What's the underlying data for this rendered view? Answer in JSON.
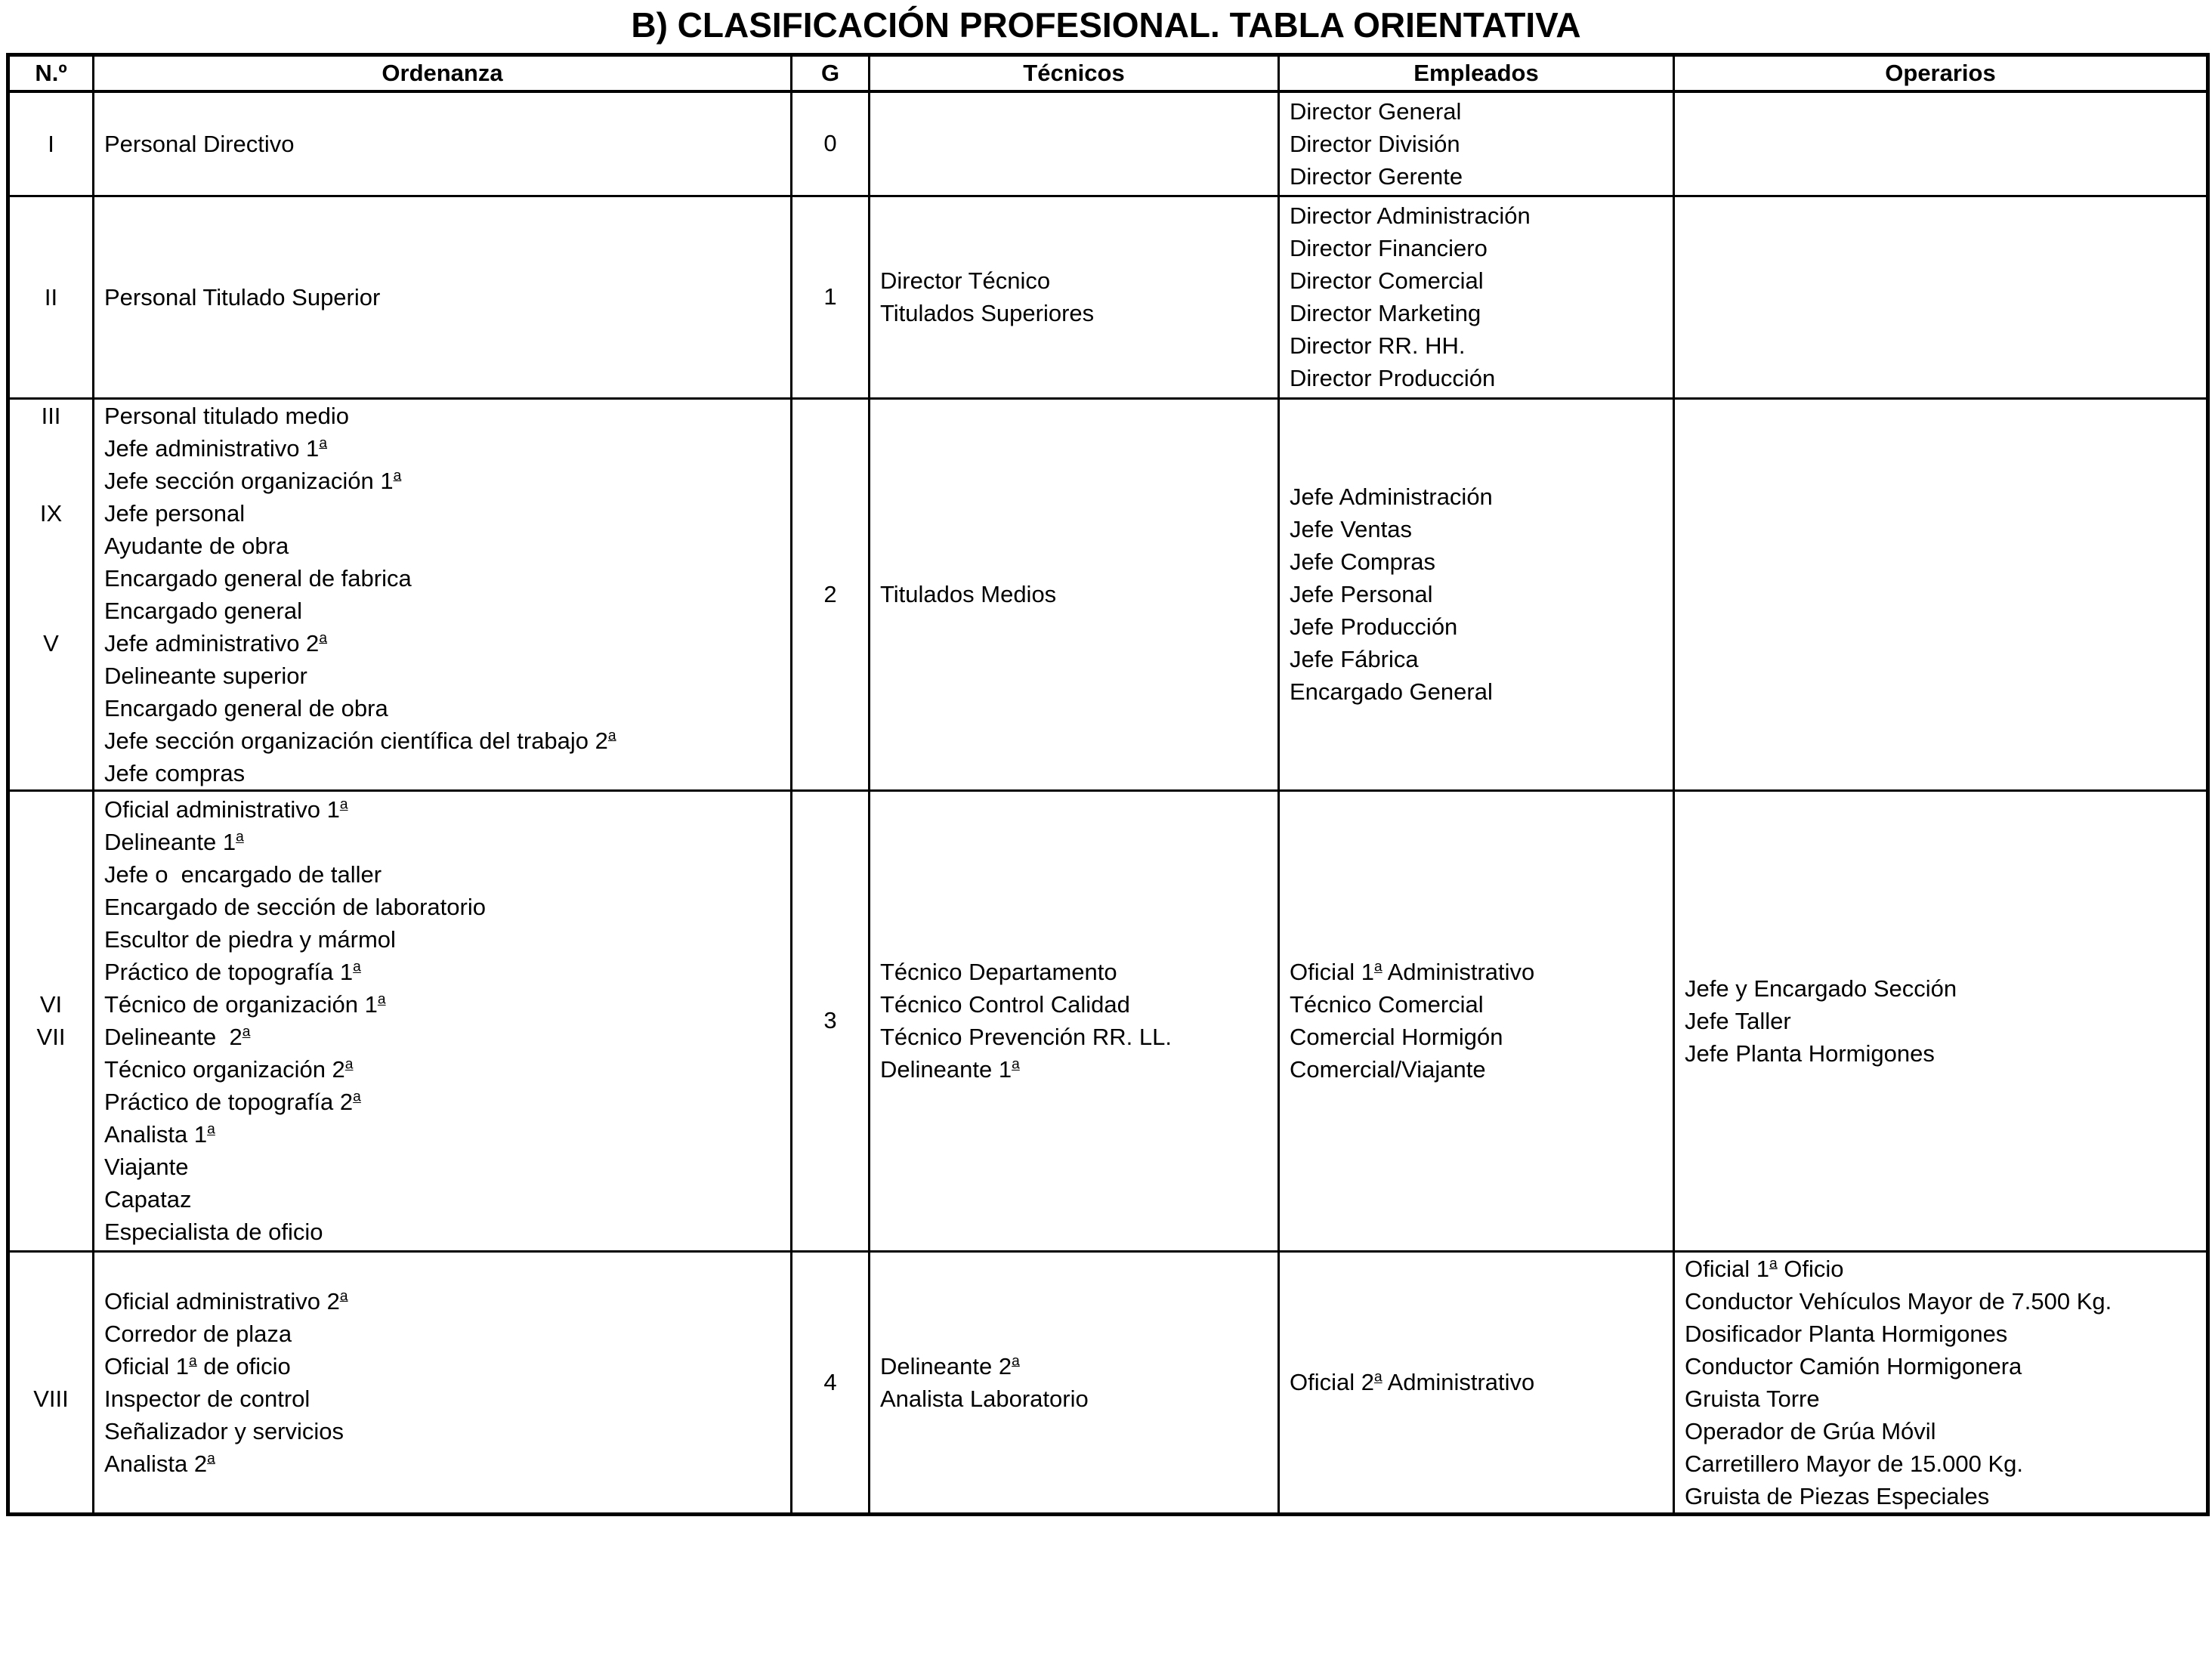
{
  "title": "B) CLASIFICACIÓN PROFESIONAL. TABLA ORIENTATIVA",
  "table": {
    "headers": [
      "N.º",
      "Ordenanza",
      "G",
      "Técnicos",
      "Empleados",
      "Operarios"
    ],
    "rows": [
      {
        "numero": [
          "I"
        ],
        "ordenanza": [
          "Personal Directivo"
        ],
        "g": "0",
        "tecnicos": [],
        "empleados": [
          "Director General",
          "Director División",
          "Director Gerente"
        ],
        "operarios": []
      },
      {
        "numero": [
          "II"
        ],
        "ordenanza": [
          "Personal Titulado Superior"
        ],
        "g": "1",
        "tecnicos": [
          "Director Técnico",
          "Titulados Superiores"
        ],
        "empleados": [
          "Director Administración",
          "Director Financiero",
          "Director Comercial",
          "Director Marketing",
          "Director RR. HH.",
          "Director Producción"
        ],
        "operarios": []
      },
      {
        "numero": [
          "III",
          "",
          "",
          "IX",
          "",
          "",
          "",
          "V",
          "",
          "",
          "",
          ""
        ],
        "ordenanza": [
          "Personal titulado medio",
          "Jefe administrativo 1ª",
          "Jefe sección organización 1ª",
          "Jefe personal",
          "Ayudante de obra",
          "Encargado general de fabrica",
          "Encargado general",
          "Jefe administrativo 2ª",
          "Delineante superior",
          "Encargado general de obra",
          "Jefe sección organización científica del trabajo 2ª",
          "Jefe compras"
        ],
        "g": "2",
        "tecnicos": [
          "Titulados Medios"
        ],
        "empleados": [
          "Jefe Administración",
          "Jefe Ventas",
          "Jefe Compras",
          "Jefe Personal",
          "Jefe Producción",
          "Jefe Fábrica",
          "Encargado General"
        ],
        "operarios": []
      },
      {
        "numero": [
          "",
          "",
          "",
          "",
          "",
          "",
          "VI",
          "VII",
          "",
          "",
          "",
          "",
          "",
          ""
        ],
        "ordenanza": [
          "Oficial administrativo 1ª",
          "Delineante 1ª",
          "Jefe o  encargado de taller",
          "Encargado de sección de laboratorio",
          "Escultor de piedra y mármol",
          "Práctico de topografía 1ª",
          "Técnico de organización 1ª",
          "Delineante  2ª",
          "Técnico organización 2ª",
          "Práctico de topografía 2ª",
          "Analista 1ª",
          "Viajante",
          "Capataz",
          "Especialista de oficio"
        ],
        "g": "3",
        "tecnicos": [
          "Técnico Departamento",
          "Técnico Control Calidad",
          "Técnico Prevención RR. LL.",
          "Delineante 1ª"
        ],
        "empleados": [
          "Oficial 1ª Administrativo",
          "Técnico Comercial",
          "Comercial Hormigón",
          "Comercial/Viajante"
        ],
        "operarios": [
          "Jefe y Encargado Sección",
          "Jefe Taller",
          "Jefe Planta Hormigones"
        ]
      },
      {
        "numero": [
          "",
          "",
          "",
          "VIII",
          "",
          ""
        ],
        "ordenanza": [
          "Oficial administrativo 2ª",
          "Corredor de plaza",
          "Oficial 1ª de oficio",
          "Inspector de control",
          "Señalizador y servicios",
          "Analista 2ª"
        ],
        "g": "4",
        "tecnicos": [
          "Delineante 2ª",
          "Analista Laboratorio"
        ],
        "empleados": [
          "Oficial 2ª Administrativo"
        ],
        "operarios": [
          "Oficial 1ª Oficio",
          "Conductor Vehículos Mayor de 7.500 Kg.",
          "Dosificador Planta Hormigones",
          "Conductor Camión Hormigonera",
          "Gruista Torre",
          "Operador de Grúa Móvil",
          "Carretillero Mayor de 15.000 Kg.",
          "Gruista de Piezas Especiales"
        ]
      }
    ]
  }
}
